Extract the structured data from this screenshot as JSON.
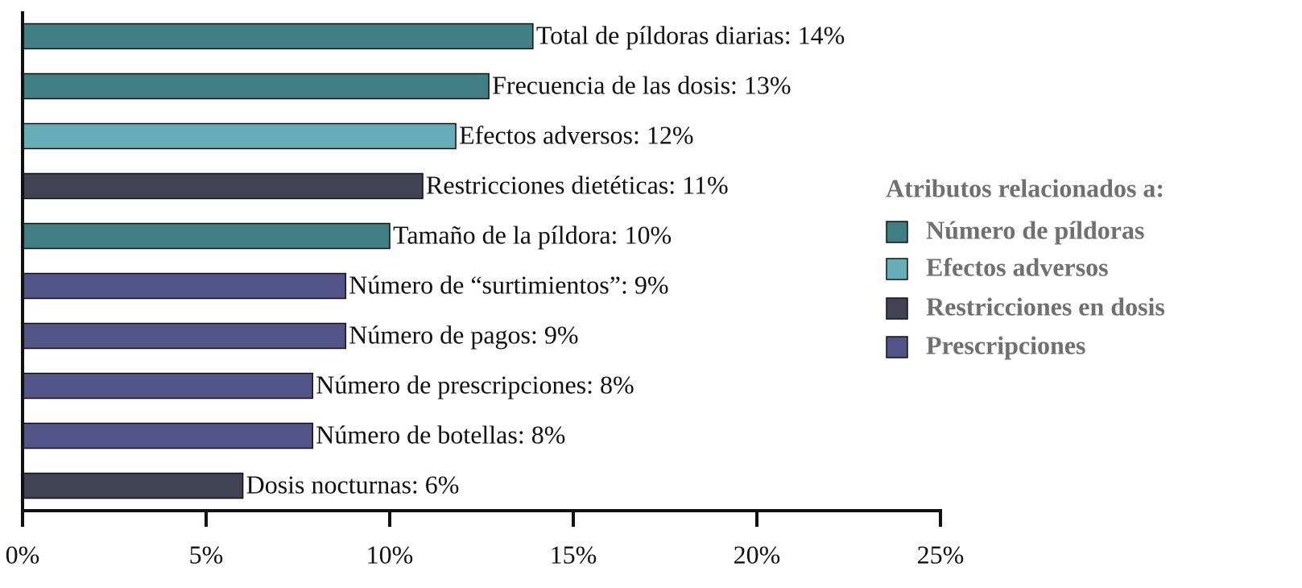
{
  "chart_data": {
    "type": "barh",
    "legend_title": "Atributos relacionados a:",
    "xlim": [
      0,
      25
    ],
    "xticks": [
      {
        "value": 0,
        "label": "0%"
      },
      {
        "value": 5,
        "label": "5%"
      },
      {
        "value": 10,
        "label": "10%"
      },
      {
        "value": 15,
        "label": "15%"
      },
      {
        "value": 20,
        "label": "20%"
      },
      {
        "value": 25,
        "label": "25%"
      }
    ],
    "legend": "right",
    "series": [
      {
        "name": "Número de píldoras",
        "color": "#3f7f83",
        "values": [
          13.9,
          12.7,
          null,
          null,
          10.0,
          null,
          null,
          null,
          null,
          null
        ],
        "value_labels": [
          "Total de píldoras diarias: 14%",
          "Frecuencia de las dosis: 13%",
          null,
          null,
          "Tamaño de la píldora: 10%",
          null,
          null,
          null,
          null,
          null
        ]
      },
      {
        "name": "Efectos adversos",
        "color": "#67adb8",
        "values": [
          null,
          null,
          11.8,
          null,
          null,
          null,
          null,
          null,
          null,
          null
        ],
        "value_labels": [
          null,
          null,
          "Efectos adversos: 12%",
          null,
          null,
          null,
          null,
          null,
          null,
          null
        ]
      },
      {
        "name": "Restricciones en dosis",
        "color": "#414253",
        "values": [
          null,
          null,
          null,
          10.9,
          null,
          null,
          null,
          null,
          null,
          6.0
        ],
        "value_labels": [
          null,
          null,
          null,
          "Restricciones dietéticas: 11%",
          null,
          null,
          null,
          null,
          null,
          "Dosis nocturnas: 6%"
        ]
      },
      {
        "name": "Prescripciones",
        "color": "#525488",
        "values": [
          null,
          null,
          null,
          null,
          null,
          8.8,
          8.8,
          7.9,
          7.9,
          null
        ],
        "value_labels": [
          null,
          null,
          null,
          null,
          null,
          "Número de “surtimientos”: 9%",
          "Número de pagos: 9%",
          "Número de prescripciones: 8%",
          "Número de botellas: 8%",
          null
        ]
      }
    ]
  }
}
